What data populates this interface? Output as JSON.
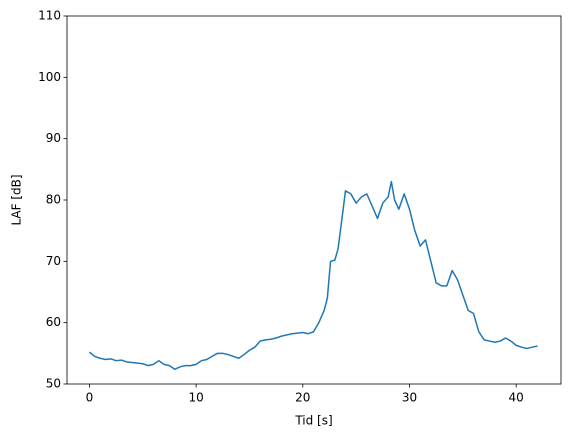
{
  "chart_data": {
    "type": "line",
    "xlabel": "Tid [s]",
    "ylabel": "LAF [dB]",
    "x": [
      0,
      0.5,
      1,
      1.5,
      2,
      2.5,
      3,
      3.5,
      4,
      4.5,
      5,
      5.5,
      6,
      6.5,
      7,
      7.5,
      8,
      8.5,
      9,
      9.5,
      10,
      10.5,
      11,
      11.5,
      12,
      12.5,
      13,
      13.5,
      14,
      14.5,
      15,
      15.5,
      16,
      16.5,
      17,
      17.5,
      18,
      18.5,
      19,
      19.5,
      20,
      20.5,
      21,
      21.5,
      22,
      22.3,
      22.6,
      23,
      23.3,
      23.6,
      24,
      24.5,
      25,
      25.5,
      26,
      26.5,
      27,
      27.5,
      28,
      28.3,
      28.6,
      29,
      29.5,
      30,
      30.5,
      31,
      31.5,
      32,
      32.5,
      33,
      33.5,
      34,
      34.5,
      35,
      35.5,
      36,
      36.5,
      37,
      37.5,
      38,
      38.5,
      39,
      39.5,
      40,
      40.5,
      41,
      41.5,
      42
    ],
    "series": [
      {
        "color": "#1f77b4",
        "values": [
          55.2,
          54.5,
          54.2,
          54.0,
          54.1,
          53.8,
          53.9,
          53.6,
          53.5,
          53.4,
          53.3,
          53.0,
          53.2,
          53.8,
          53.2,
          53.0,
          52.4,
          52.8,
          53.0,
          53.0,
          53.2,
          53.8,
          54.0,
          54.5,
          55.0,
          55.0,
          54.8,
          54.5,
          54.2,
          54.8,
          55.5,
          56.0,
          57.0,
          57.2,
          57.3,
          57.5,
          57.8,
          58.0,
          58.2,
          58.3,
          58.4,
          58.2,
          58.5,
          60.0,
          62.0,
          64.0,
          70.0,
          70.2,
          72.0,
          76.0,
          81.5,
          81.0,
          79.5,
          80.5,
          81.0,
          79.0,
          77.0,
          79.5,
          80.5,
          83.0,
          80.0,
          78.5,
          81.0,
          78.5,
          75.0,
          72.5,
          73.5,
          70.0,
          66.5,
          66.0,
          66.0,
          68.5,
          67.0,
          64.5,
          62.0,
          61.5,
          58.5,
          57.2,
          57.0,
          56.8,
          57.0,
          57.5,
          57.0,
          56.3,
          56.0,
          55.8,
          56.0,
          56.2
        ]
      }
    ],
    "xlim": [
      -2.1,
      44.2
    ],
    "ylim": [
      50,
      110
    ],
    "xticks": [
      0,
      10,
      20,
      30,
      40
    ],
    "yticks": [
      50,
      60,
      70,
      80,
      90,
      100,
      110
    ]
  }
}
